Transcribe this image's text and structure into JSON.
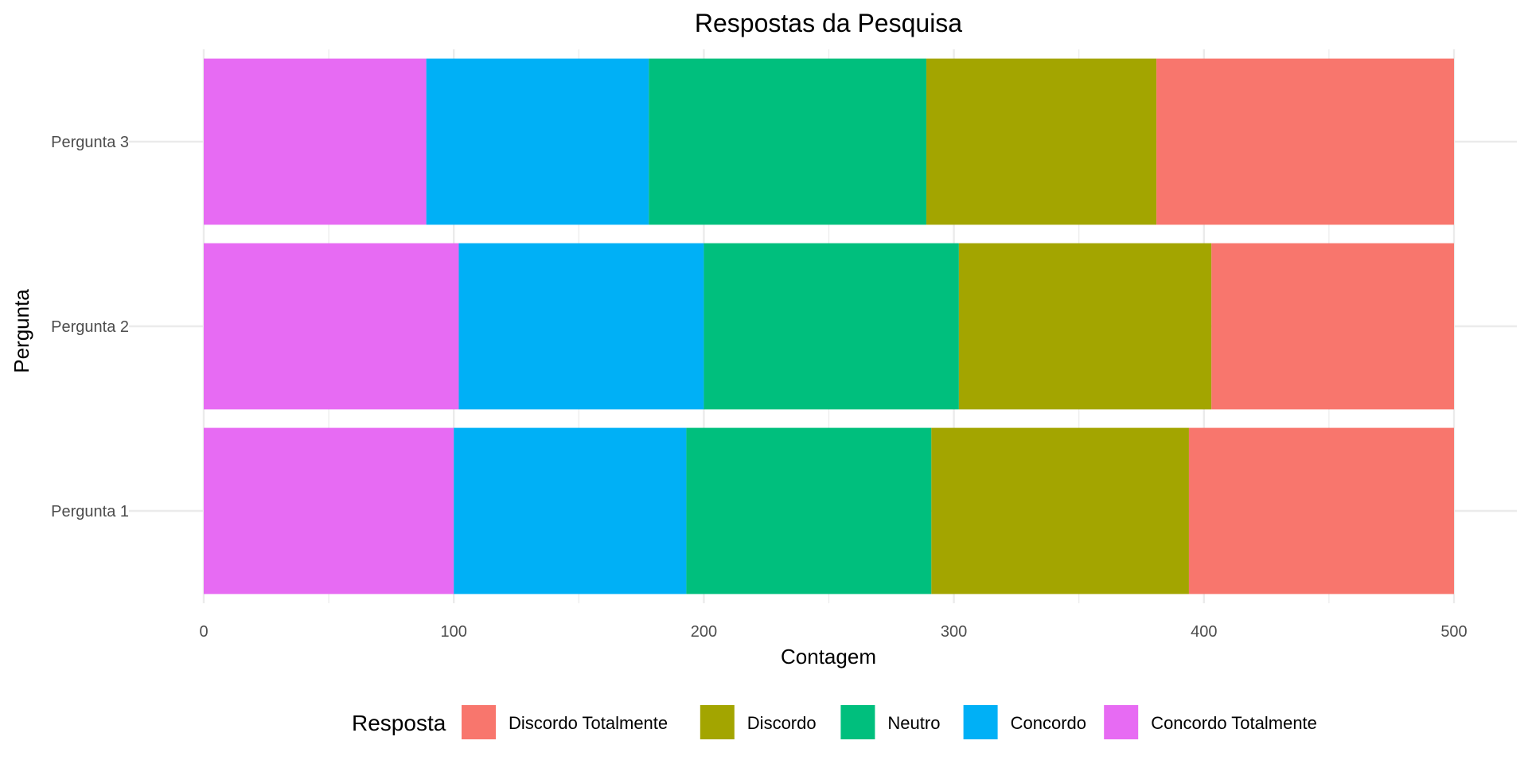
{
  "chart_data": {
    "type": "bar",
    "orientation": "horizontal",
    "stacked": true,
    "title": "Respostas da Pesquisa",
    "xlabel": "Contagem",
    "ylabel": "Pergunta",
    "xlim": [
      0,
      500
    ],
    "x_ticks": [
      0,
      100,
      200,
      300,
      400,
      500
    ],
    "grid": true,
    "legend": {
      "title": "Resposta",
      "position": "bottom"
    },
    "categories": [
      "Pergunta 1",
      "Pergunta 2",
      "Pergunta 3"
    ],
    "series": [
      {
        "name": "Concordo Totalmente",
        "color": "#E76BF3",
        "values": [
          100,
          102,
          89
        ]
      },
      {
        "name": "Concordo",
        "color": "#00B0F6",
        "values": [
          93,
          98,
          89
        ]
      },
      {
        "name": "Neutro",
        "color": "#00BF7D",
        "values": [
          98,
          102,
          111
        ]
      },
      {
        "name": "Discordo",
        "color": "#A3A500",
        "values": [
          103,
          101,
          92
        ]
      },
      {
        "name": "Discordo Totalmente",
        "color": "#F8766D",
        "values": [
          106,
          97,
          119
        ]
      }
    ],
    "legend_order": [
      "Discordo Totalmente",
      "Discordo",
      "Neutro",
      "Concordo",
      "Concordo Totalmente"
    ]
  }
}
